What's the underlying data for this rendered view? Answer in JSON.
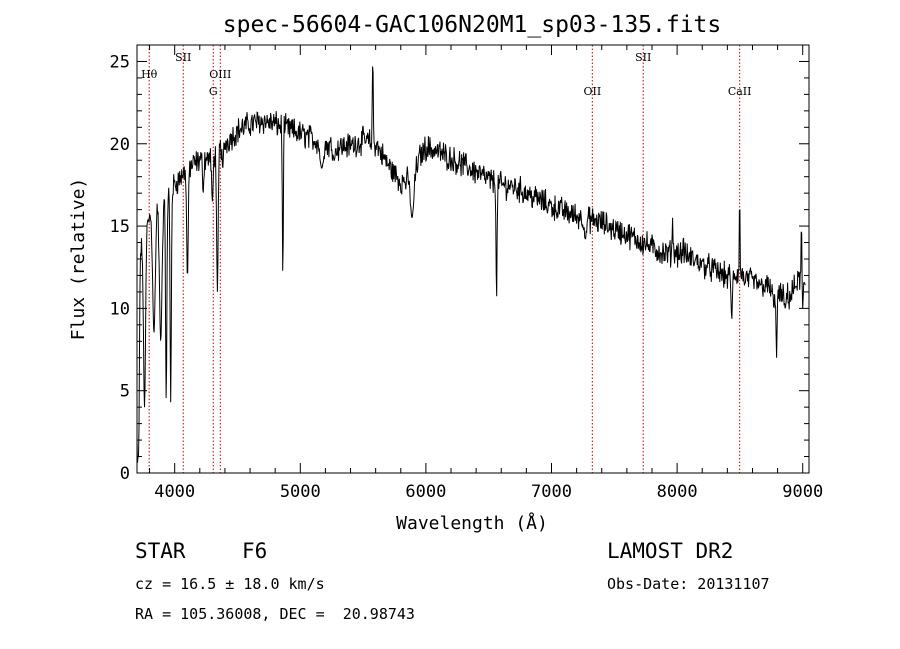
{
  "chart_data": {
    "type": "line",
    "title": "spec-56604-GAC106N20M1_sp03-135.fits",
    "xlabel": "Wavelength (Å)",
    "ylabel": "Flux (relative)",
    "xlim": [
      3700,
      9050
    ],
    "ylim": [
      0,
      26
    ],
    "xticks": [
      "4000",
      "5000",
      "6000",
      "7000",
      "8000",
      "9000"
    ],
    "yticks": [
      "0",
      "5",
      "10",
      "15",
      "20",
      "25"
    ],
    "grid": false,
    "legend": "none",
    "line_color": "#000000",
    "marker_color": "#cc0000",
    "continuum": [
      [
        3700,
        12.5
      ],
      [
        3800,
        15.5
      ],
      [
        3900,
        16.5
      ],
      [
        4000,
        17.5
      ],
      [
        4100,
        18.5
      ],
      [
        4200,
        19.0
      ],
      [
        4300,
        19.2
      ],
      [
        4400,
        20.0
      ],
      [
        4500,
        20.8
      ],
      [
        4600,
        21.2
      ],
      [
        4700,
        21.4
      ],
      [
        4800,
        21.2
      ],
      [
        4900,
        20.9
      ],
      [
        5000,
        20.6
      ],
      [
        5100,
        20.3
      ],
      [
        5200,
        19.9
      ],
      [
        5300,
        19.8
      ],
      [
        5400,
        19.9
      ],
      [
        5500,
        20.2
      ],
      [
        5600,
        20.0
      ],
      [
        5700,
        18.7
      ],
      [
        5800,
        17.7
      ],
      [
        5900,
        17.8
      ],
      [
        5950,
        19.2
      ],
      [
        6000,
        19.8
      ],
      [
        6100,
        19.5
      ],
      [
        6200,
        19.1
      ],
      [
        6300,
        18.7
      ],
      [
        6400,
        18.3
      ],
      [
        6500,
        17.8
      ],
      [
        6600,
        17.5
      ],
      [
        6700,
        17.4
      ],
      [
        6800,
        17.0
      ],
      [
        6900,
        16.6
      ],
      [
        7000,
        16.2
      ],
      [
        7100,
        15.9
      ],
      [
        7200,
        15.6
      ],
      [
        7300,
        15.4
      ],
      [
        7400,
        15.2
      ],
      [
        7500,
        14.8
      ],
      [
        7600,
        14.5
      ],
      [
        7700,
        14.1
      ],
      [
        7800,
        13.7
      ],
      [
        7900,
        13.3
      ],
      [
        8000,
        13.4
      ],
      [
        8100,
        13.1
      ],
      [
        8200,
        12.7
      ],
      [
        8300,
        12.3
      ],
      [
        8400,
        11.9
      ],
      [
        8500,
        12.1
      ],
      [
        8600,
        11.6
      ],
      [
        8700,
        11.4
      ],
      [
        8800,
        10.8
      ],
      [
        8900,
        10.7
      ],
      [
        8950,
        11.5
      ],
      [
        9000,
        12.0
      ],
      [
        9050,
        10.5
      ]
    ],
    "absorption_features": [
      [
        3705,
        0.4,
        9
      ],
      [
        3712,
        1.0,
        5
      ],
      [
        3760,
        4.0,
        8
      ],
      [
        3835,
        8.5,
        10
      ],
      [
        3889,
        8.0,
        10
      ],
      [
        3933,
        4.3,
        5
      ],
      [
        3968,
        4.3,
        5
      ],
      [
        4102,
        11.8,
        6
      ],
      [
        4227,
        17.0,
        5
      ],
      [
        4300,
        16.5,
        6
      ],
      [
        4340,
        11.0,
        6
      ],
      [
        4383,
        18.5,
        5
      ],
      [
        4861,
        12.0,
        4
      ],
      [
        5170,
        18.5,
        12
      ],
      [
        5270,
        19.0,
        8
      ],
      [
        5890,
        15.5,
        12
      ],
      [
        6563,
        10.5,
        4
      ],
      [
        7270,
        14.2,
        8
      ],
      [
        8200,
        12.9,
        6
      ],
      [
        8435,
        9.3,
        5
      ],
      [
        8498,
        11.8,
        5
      ],
      [
        8542,
        11.5,
        5
      ],
      [
        8662,
        11.4,
        5
      ],
      [
        8770,
        10.0,
        5
      ],
      [
        8792,
        7.0,
        4
      ],
      [
        8860,
        10.0,
        6
      ],
      [
        9000,
        10.0,
        5
      ]
    ],
    "emission_features": [
      [
        5577,
        25.8,
        3
      ],
      [
        5578,
        24.5,
        3
      ],
      [
        8498,
        17.0,
        3
      ],
      [
        8990,
        15.3,
        3
      ],
      [
        7964,
        15.5,
        3
      ],
      [
        8050,
        14.4,
        3
      ]
    ],
    "line_markers": [
      {
        "label": "Hθ",
        "x": 3797,
        "row": 1
      },
      {
        "label": "SII",
        "x": 4068,
        "row": 0
      },
      {
        "label": "OIII",
        "x": 4363,
        "row": 1
      },
      {
        "label": "G",
        "x": 4307,
        "row": 2
      },
      {
        "label": "OII",
        "x": 7325,
        "row": 2
      },
      {
        "label": "SII",
        "x": 7730,
        "row": 0
      },
      {
        "label": "CaII",
        "x": 8498,
        "row": 2
      }
    ]
  },
  "info": {
    "object_class": "STAR",
    "subclass": "F6",
    "survey": "LAMOST DR2",
    "cz": "cz = 16.5 ± 18.0 km/s",
    "obs_date": "Obs-Date: 20131107",
    "coords": "RA = 105.36008, DEC =  20.98743"
  }
}
